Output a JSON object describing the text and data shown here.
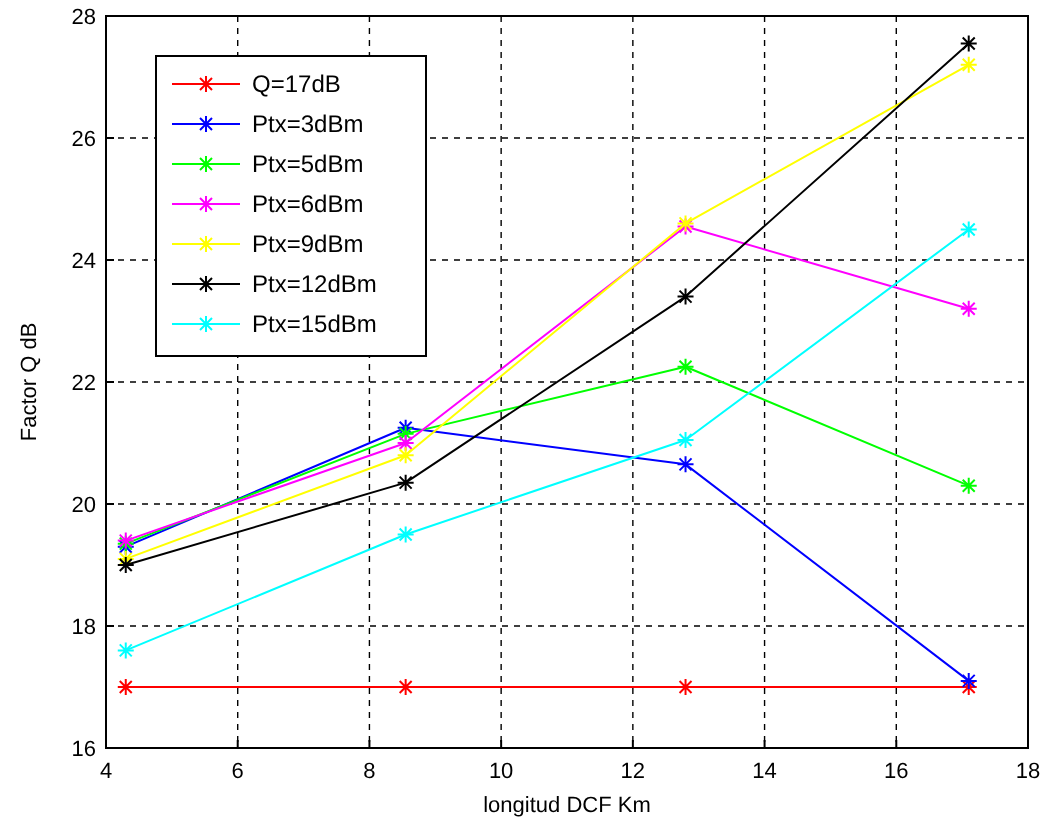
{
  "chart_data": {
    "type": "line",
    "xlabel": "longitud DCF Km",
    "ylabel": "Factor Q dB",
    "x": [
      4.3,
      8.55,
      12.8,
      17.1
    ],
    "series": [
      {
        "name": "Q=17dB",
        "color": "#ff0000",
        "values": [
          17,
          17,
          17,
          17
        ]
      },
      {
        "name": "Ptx=3dBm",
        "color": "#0000ff",
        "values": [
          19.3,
          21.25,
          20.65,
          17.1
        ]
      },
      {
        "name": "Ptx=5dBm",
        "color": "#00ff00",
        "values": [
          19.35,
          21.15,
          22.25,
          20.3
        ]
      },
      {
        "name": "Ptx=6dBm",
        "color": "#ff00ff",
        "values": [
          19.4,
          21.0,
          24.55,
          23.2
        ]
      },
      {
        "name": "Ptx=9dBm",
        "color": "#ffff00",
        "values": [
          19.1,
          20.8,
          24.6,
          27.2
        ]
      },
      {
        "name": "Ptx=12dBm",
        "color": "#000000",
        "values": [
          19.0,
          20.35,
          23.4,
          27.55
        ]
      },
      {
        "name": "Ptx=15dBm",
        "color": "#00ffff",
        "values": [
          17.6,
          19.5,
          21.05,
          24.5
        ]
      }
    ],
    "xlim": [
      4,
      18
    ],
    "xticks": [
      4,
      6,
      8,
      10,
      12,
      14,
      16,
      18
    ],
    "ylim": [
      16,
      28
    ],
    "yticks": [
      16,
      18,
      20,
      22,
      24,
      26,
      28
    ],
    "grid": true,
    "legend": "top left",
    "marker": "cross",
    "line_style": "solid"
  }
}
